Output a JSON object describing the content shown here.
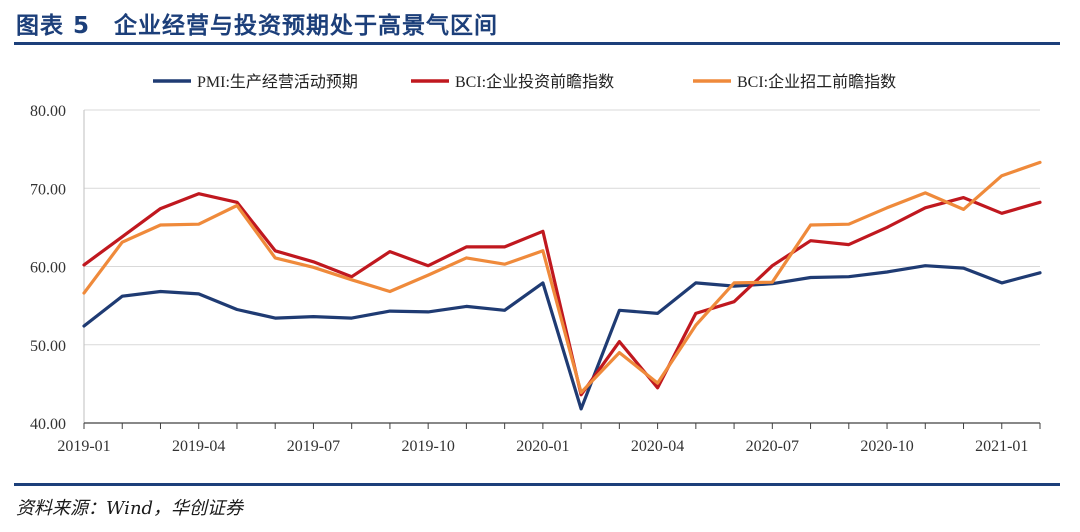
{
  "header": {
    "title": "图表 5　企业经营与投资预期处于高景气区间"
  },
  "footer": {
    "source": "资料来源：Wind，华创证券"
  },
  "colors": {
    "header": "#1c3f7a",
    "pmi": "#1f3b73",
    "bci_invest": "#c0181f",
    "bci_hire": "#ef8a3b",
    "grid": "#d9d9d9"
  },
  "chart_data": {
    "type": "line",
    "ylim": [
      40,
      80
    ],
    "yticks": [
      "40.00",
      "50.00",
      "60.00",
      "70.00",
      "80.00"
    ],
    "xticks": [
      "2019-01",
      "2019-04",
      "2019-07",
      "2019-10",
      "2020-01",
      "2020-04",
      "2020-07",
      "2020-10",
      "2021-01"
    ],
    "grid": "horizontal",
    "legend_position": "top",
    "x": [
      "2019-01",
      "2019-02",
      "2019-03",
      "2019-04",
      "2019-05",
      "2019-06",
      "2019-07",
      "2019-08",
      "2019-09",
      "2019-10",
      "2019-11",
      "2019-12",
      "2020-01",
      "2020-02",
      "2020-03",
      "2020-04",
      "2020-05",
      "2020-06",
      "2020-07",
      "2020-08",
      "2020-09",
      "2020-10",
      "2020-11",
      "2020-12",
      "2021-01",
      "2021-02"
    ],
    "series": [
      {
        "name": "PMI:生产经营活动预期",
        "color": "#1f3b73",
        "values": [
          52.4,
          56.2,
          56.8,
          56.5,
          54.5,
          53.4,
          53.6,
          53.4,
          54.3,
          54.2,
          54.9,
          54.4,
          57.9,
          41.8,
          54.4,
          54.0,
          57.9,
          57.5,
          57.8,
          58.6,
          58.7,
          59.3,
          60.1,
          59.8,
          57.9,
          59.2
        ]
      },
      {
        "name": "BCI:企业投资前瞻指数",
        "color": "#c0181f",
        "values": [
          60.2,
          63.8,
          67.4,
          69.3,
          68.2,
          62.0,
          60.6,
          58.7,
          61.9,
          60.1,
          62.5,
          62.5,
          64.5,
          43.6,
          50.4,
          44.5,
          54.0,
          55.5,
          60.1,
          63.3,
          62.8,
          65.0,
          67.5,
          68.8,
          66.8,
          68.2
        ]
      },
      {
        "name": "BCI:企业招工前瞻指数",
        "color": "#ef8a3b",
        "values": [
          56.6,
          63.1,
          65.3,
          65.4,
          67.8,
          61.1,
          59.9,
          58.3,
          56.8,
          58.9,
          61.1,
          60.3,
          62.0,
          43.9,
          49.0,
          45.1,
          52.5,
          57.9,
          58.0,
          65.3,
          65.4,
          67.5,
          69.4,
          67.3,
          71.6,
          73.3
        ]
      }
    ]
  }
}
